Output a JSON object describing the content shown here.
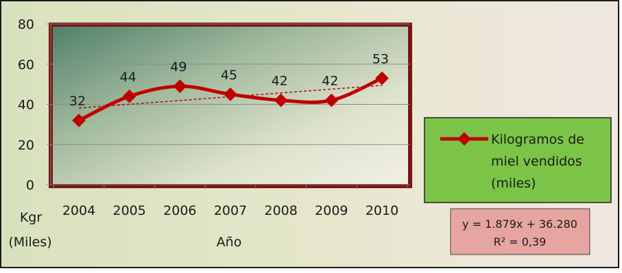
{
  "chart_data": {
    "type": "line",
    "categories": [
      "2004",
      "2005",
      "2006",
      "2007",
      "2008",
      "2009",
      "2010"
    ],
    "series": [
      {
        "name": "Kilogramos de miel vendidos (miles)",
        "values": [
          32,
          44,
          49,
          45,
          42,
          42,
          53
        ],
        "color": "#c00000"
      }
    ],
    "data_labels": [
      "32",
      "44",
      "49",
      "45",
      "42",
      "42",
      "53"
    ],
    "y_ticks": [
      "0",
      "20",
      "40",
      "60",
      "80"
    ],
    "ylim": [
      0,
      80
    ],
    "ylabel_line1": "Kgr",
    "ylabel_line2": "(Miles)",
    "xlabel": "Año",
    "trendline": {
      "type": "linear",
      "equation": "y = 1.879x + 36.280",
      "r2": "R² = 0,39",
      "color": "#c00000"
    },
    "legend": {
      "position": "right",
      "lines": [
        "Kilogramos de",
        "miel vendidos",
        "(miles)"
      ],
      "background": "#7cc447"
    },
    "equation_box_background": "#e6a5a0",
    "grid": true,
    "plot_border_color": "#7a1515"
  }
}
